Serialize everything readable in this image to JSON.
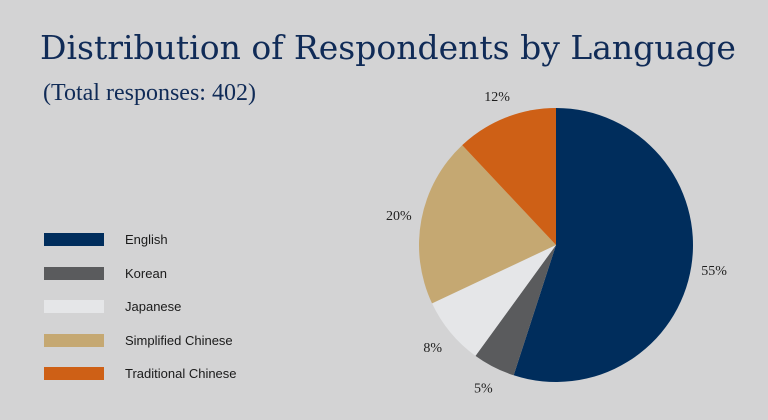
{
  "chart_data": {
    "type": "pie",
    "title": "Distribution of Respondents by Language",
    "subtitle": "(Total responses: 402)",
    "legend_position": "left",
    "slices": [
      {
        "label": "English",
        "value": 55,
        "value_label": "55%",
        "color": "#002d5c"
      },
      {
        "label": "Korean",
        "value": 5,
        "value_label": "5%",
        "color": "#5a5b5d"
      },
      {
        "label": "Japanese",
        "value": 8,
        "value_label": "8%",
        "color": "#e5e6e8"
      },
      {
        "label": "Simplified Chinese",
        "value": 20,
        "value_label": "20%",
        "color": "#c5a872"
      },
      {
        "label": "Traditional Chinese",
        "value": 12,
        "value_label": "12%",
        "color": "#ce6016"
      }
    ]
  }
}
